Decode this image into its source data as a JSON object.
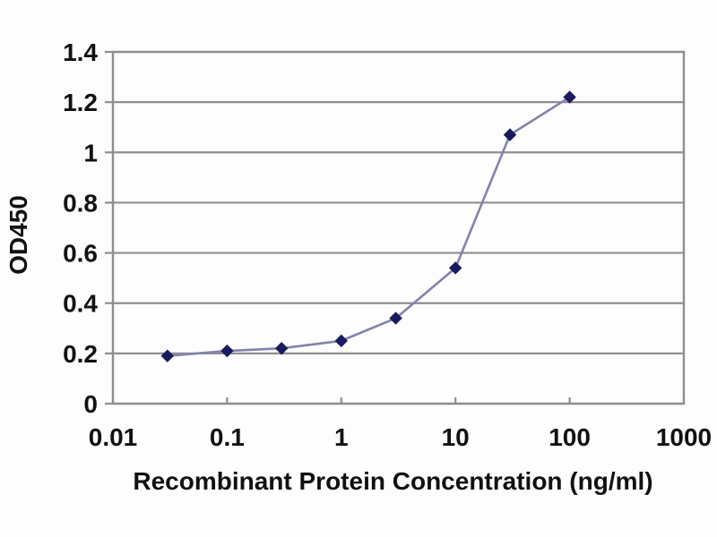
{
  "figure": {
    "background": "#fdfdfd",
    "description": "ELISA dose-response curve"
  },
  "chart_data": {
    "type": "line",
    "title": "",
    "xlabel": "Recombinant Protein Concentration (ng/ml)",
    "ylabel": "OD450",
    "x_scale": "log",
    "y_scale": "linear",
    "xlim": [
      0.01,
      1000
    ],
    "ylim": [
      0,
      1.4
    ],
    "x_tick_values": [
      0.01,
      0.1,
      1,
      10,
      100,
      1000
    ],
    "x_tick_labels": [
      "0.01",
      "0.1",
      "1",
      "10",
      "100",
      "1000"
    ],
    "y_tick_values": [
      0,
      0.2,
      0.4,
      0.6,
      0.8,
      1,
      1.2,
      1.4
    ],
    "y_tick_labels": [
      "0",
      "0.2",
      "0.4",
      "0.6",
      "0.8",
      "1",
      "1.2",
      "1.4"
    ],
    "grid": "horizontal",
    "legend": "none",
    "series": [
      {
        "x": [
          0.03,
          0.1,
          0.3,
          1,
          3,
          10,
          30,
          100
        ],
        "y": [
          0.19,
          0.21,
          0.22,
          0.25,
          0.34,
          0.54,
          1.07,
          1.22
        ],
        "marker": "diamond",
        "line_color": "#8282ae",
        "marker_color": "#1a1a5e"
      }
    ],
    "axis_color": "#8e8e8e",
    "text_color": "#111111",
    "plot_background": "#fdfdfd"
  }
}
